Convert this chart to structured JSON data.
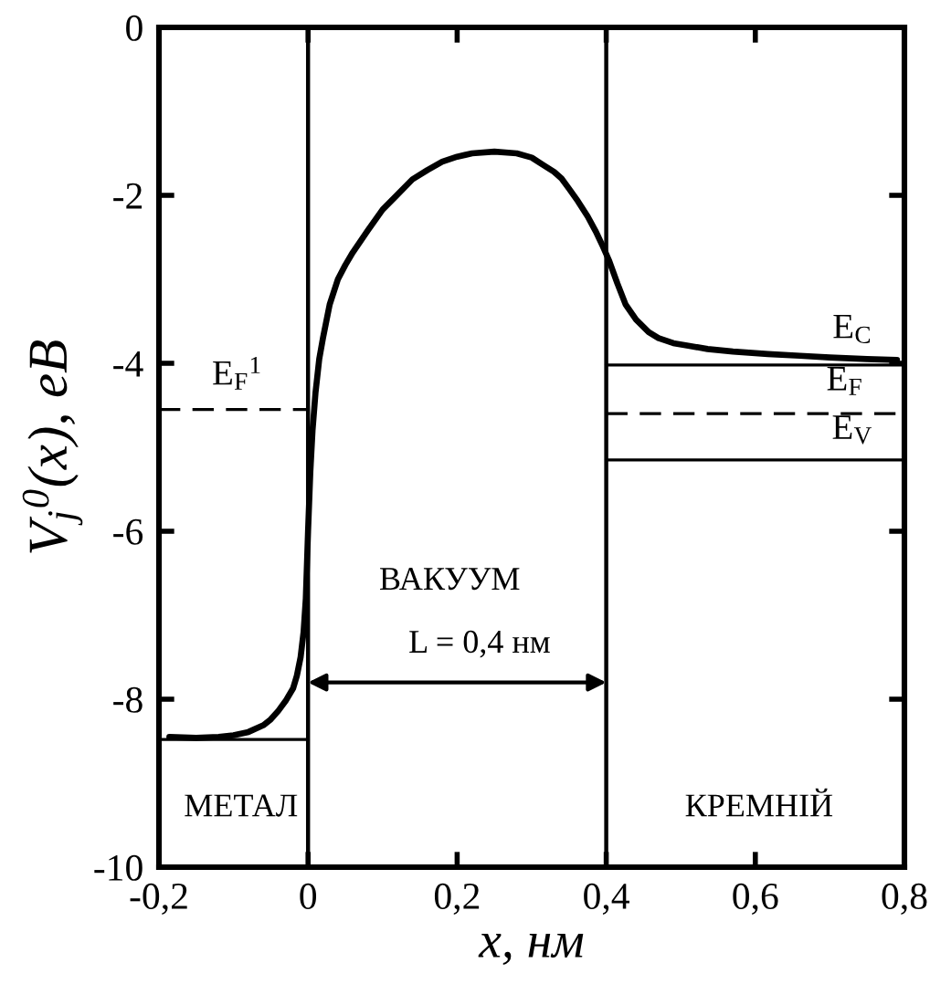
{
  "chart_data": {
    "type": "line",
    "xlabel": "x, нм",
    "ylabel": "V$_{j}$$^{0}$(x), eB",
    "xlim": [
      -0.2,
      0.8
    ],
    "ylim": [
      -10,
      0
    ],
    "xticks": [
      {
        "value": -0.2,
        "label": "-0,2"
      },
      0,
      {
        "value": 0.2,
        "label": "0,2"
      },
      {
        "value": 0.4,
        "label": "0,4"
      },
      {
        "value": 0.6,
        "label": "0,6"
      },
      {
        "value": 0.8,
        "label": "0,8"
      }
    ],
    "yticks": [
      -10,
      -8,
      -6,
      -4,
      -2,
      0
    ],
    "grid": false,
    "legend": false,
    "marker": "none",
    "series": [
      {
        "color": "#000000",
        "line_style": "solid",
        "x": [
          -0.186,
          -0.15,
          -0.12,
          -0.1,
          -0.08,
          -0.06,
          -0.05,
          -0.04,
          -0.03,
          -0.02,
          -0.015,
          -0.01,
          -0.006,
          -0.003,
          0,
          0.003,
          0.006,
          0.01,
          0.015,
          0.02,
          0.029,
          0.04,
          0.05,
          0.06,
          0.08,
          0.1,
          0.12,
          0.14,
          0.16,
          0.18,
          0.2,
          0.22,
          0.25,
          0.28,
          0.3,
          0.314,
          0.33,
          0.34,
          0.35,
          0.362,
          0.375,
          0.386,
          0.395,
          0.404,
          0.415,
          0.426,
          0.44,
          0.457,
          0.47,
          0.49,
          0.51,
          0.536,
          0.57,
          0.617,
          0.66,
          0.7,
          0.75,
          0.79
        ],
        "values": [
          -8.45,
          -8.46,
          -8.45,
          -8.43,
          -8.39,
          -8.31,
          -8.24,
          -8.14,
          -8.02,
          -7.87,
          -7.72,
          -7.5,
          -7.2,
          -6.8,
          -6.0,
          -5.3,
          -4.8,
          -4.35,
          -3.95,
          -3.7,
          -3.3,
          -3.0,
          -2.83,
          -2.68,
          -2.42,
          -2.17,
          -1.99,
          -1.81,
          -1.7,
          -1.6,
          -1.54,
          -1.5,
          -1.48,
          -1.5,
          -1.55,
          -1.63,
          -1.72,
          -1.8,
          -1.92,
          -2.07,
          -2.25,
          -2.43,
          -2.6,
          -2.78,
          -3.05,
          -3.3,
          -3.48,
          -3.63,
          -3.7,
          -3.76,
          -3.79,
          -3.83,
          -3.86,
          -3.89,
          -3.91,
          -3.93,
          -3.95,
          -3.96
        ]
      },
      {
        "color": "#000000",
        "line_style": "dashed",
        "x": [
          -0.2,
          0
        ],
        "values": [
          -4.55,
          -4.55
        ]
      },
      {
        "color": "#000000",
        "line_style": "solid",
        "x": [
          -0.2,
          0
        ],
        "values": [
          -8.48,
          -8.48
        ]
      },
      {
        "color": "#000000",
        "line_style": "solid",
        "x": [
          0.4,
          0.8
        ],
        "values": [
          -4.02,
          -4.02
        ]
      },
      {
        "color": "#000000",
        "line_style": "dashed",
        "x": [
          0.4,
          0.8
        ],
        "values": [
          -4.6,
          -4.6
        ]
      },
      {
        "color": "#000000",
        "line_style": "solid",
        "x": [
          0.4,
          0.8
        ],
        "values": [
          -5.15,
          -5.15
        ]
      }
    ],
    "ref_lines": [
      {
        "axis": "x",
        "value": 0,
        "color": "#000000"
      },
      {
        "axis": "x",
        "value": 0.4,
        "color": "#000000"
      }
    ],
    "annotations": [
      "E$_{F}$$^{1}$",
      "E$_{C}$",
      "E$_{F}$",
      "E$_{V}$",
      "ВАКУУМ",
      "L = 0,4 нм",
      "МЕТАЛ",
      "КРЕМНІЙ"
    ]
  }
}
